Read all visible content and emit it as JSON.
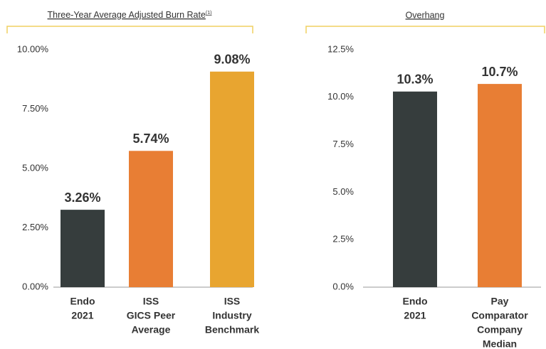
{
  "chart_data": [
    {
      "type": "bar",
      "title": "Three-Year Average Adjusted Burn Rate",
      "title_note": "(1)",
      "categories": [
        [
          "Endo",
          "2021"
        ],
        [
          "ISS",
          "GICS Peer",
          "Average"
        ],
        [
          "ISS",
          "Industry",
          "Benchmark"
        ]
      ],
      "values": [
        3.26,
        5.74,
        9.08
      ],
      "value_labels": [
        "3.26%",
        "5.74%",
        "9.08%"
      ],
      "colors": [
        "#363d3d",
        "#e87e34",
        "#e8a530"
      ],
      "ylim": [
        0,
        10
      ],
      "yticks": [
        {
          "value": 0,
          "label": "0.00%"
        },
        {
          "value": 2.5,
          "label": "2.50%"
        },
        {
          "value": 5,
          "label": "5.00%"
        },
        {
          "value": 7.5,
          "label": "7.50%"
        },
        {
          "value": 10,
          "label": "10.00%"
        }
      ],
      "grid": false
    },
    {
      "type": "bar",
      "title": "Overhang",
      "categories": [
        [
          "Endo",
          "2021"
        ],
        [
          "Pay",
          "Comparator",
          "Company",
          "Median"
        ]
      ],
      "values": [
        10.3,
        10.7
      ],
      "value_labels": [
        "10.3%",
        "10.7%"
      ],
      "colors": [
        "#363d3d",
        "#e87e34"
      ],
      "ylim": [
        0,
        12.5
      ],
      "yticks": [
        {
          "value": 0,
          "label": "0.0%"
        },
        {
          "value": 2.5,
          "label": "2.5%"
        },
        {
          "value": 5,
          "label": "5.0%"
        },
        {
          "value": 7.5,
          "label": "7.5%"
        },
        {
          "value": 10,
          "label": "10.0%"
        },
        {
          "value": 12.5,
          "label": "12.5%"
        }
      ],
      "grid": false
    }
  ]
}
